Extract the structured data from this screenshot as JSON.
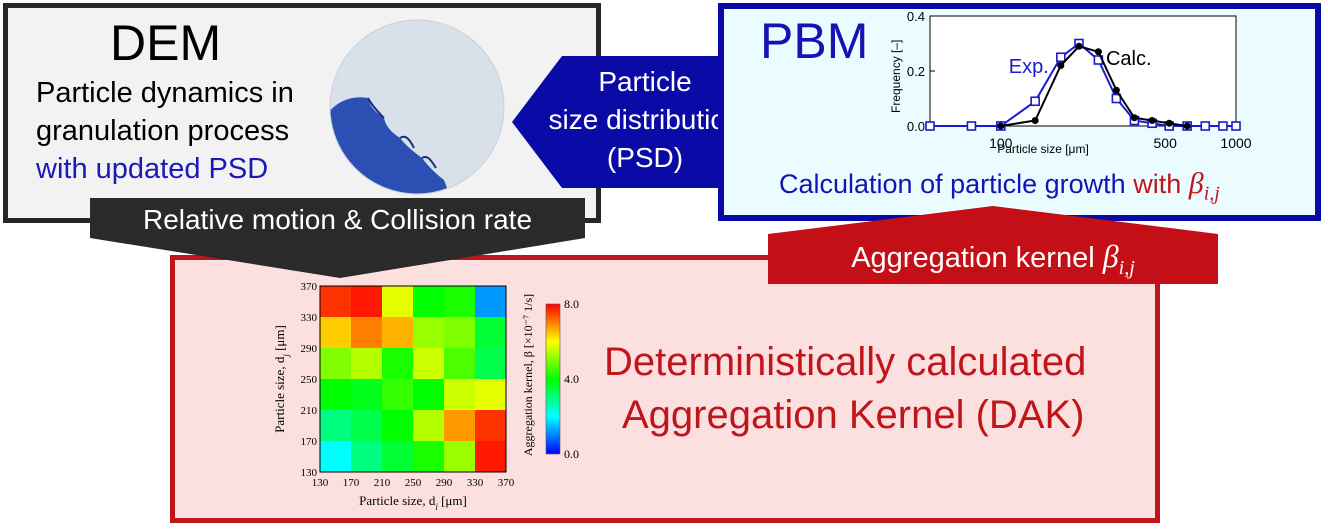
{
  "dem": {
    "title": "DEM",
    "line1": "Particle dynamics in",
    "line2": "granulation process",
    "line3": "with updated PSD"
  },
  "arrow_left": {
    "line1": "Particle",
    "line2": "size distribution",
    "line3": "(PSD)"
  },
  "pbm": {
    "title": "PBM",
    "calc_text": "Calculation of particle growth",
    "with_text": "with",
    "beta": "β",
    "sub": "i,j"
  },
  "banner_dark": {
    "text": "Relative motion & Collision rate"
  },
  "banner_red": {
    "text": "Aggregation kernel",
    "beta": "β",
    "sub": "i,j"
  },
  "dak": {
    "line1": "Deterministically calculated",
    "line2": "Aggregation Kernel (DAK)"
  },
  "colors": {
    "dem_border": "#262626",
    "pbm_border": "#0a0aa6",
    "dak_border": "#c0161b",
    "exp_series": "#1a1ad0",
    "calc_series": "#000000"
  },
  "chart_data": [
    {
      "type": "line",
      "xlabel": "Particle size [μm]",
      "ylabel": "Frequency [–]",
      "xscale": "log",
      "xlim": [
        50,
        1000
      ],
      "ylim": [
        0.0,
        0.4
      ],
      "xticks": [
        "100",
        "500",
        "1000"
      ],
      "yticks": [
        "0.0",
        "0.2",
        "0.4"
      ],
      "series": [
        {
          "name": "Exp.",
          "x": [
            50,
            75,
            100,
            140,
            180,
            215,
            260,
            310,
            370,
            440,
            520,
            620,
            740,
            880,
            1000
          ],
          "y": [
            0.0,
            0.0,
            0.0,
            0.09,
            0.25,
            0.3,
            0.24,
            0.1,
            0.02,
            0.01,
            0.0,
            0.0,
            0.0,
            0.0,
            0.0
          ]
        },
        {
          "name": "Calc.",
          "x": [
            100,
            140,
            180,
            215,
            260,
            310,
            370,
            440,
            520,
            620
          ],
          "y": [
            0.0,
            0.02,
            0.22,
            0.29,
            0.27,
            0.13,
            0.03,
            0.02,
            0.01,
            0.0
          ]
        }
      ]
    },
    {
      "type": "heatmap",
      "xlabel": "Particle size, d",
      "xlabel_sub": "i",
      "xlabel_unit": " [μm]",
      "ylabel": "Particle size, d",
      "ylabel_sub": "j",
      "ylabel_unit": " [μm]",
      "ticks": [
        "130",
        "170",
        "210",
        "250",
        "290",
        "330",
        "370"
      ],
      "colorbar_label": "Aggregation kernel, β [×10⁻⁷ 1/s]",
      "colorbar_ticks": [
        "0.0",
        "4.0",
        "8.0"
      ],
      "colorbar_range": [
        0.0,
        8.0
      ],
      "rows_top_to_bottom": [
        [
          7.6,
          7.8,
          5.8,
          4.0,
          4.2,
          1.2
        ],
        [
          6.4,
          7.0,
          6.6,
          5.2,
          5.0,
          3.6
        ],
        [
          5.0,
          5.4,
          4.2,
          5.6,
          4.6,
          3.4
        ],
        [
          4.0,
          3.8,
          4.4,
          4.0,
          5.6,
          5.8
        ],
        [
          3.0,
          3.4,
          4.0,
          5.4,
          6.8,
          7.6
        ],
        [
          2.0,
          3.0,
          3.6,
          4.2,
          5.2,
          7.8
        ]
      ]
    }
  ]
}
